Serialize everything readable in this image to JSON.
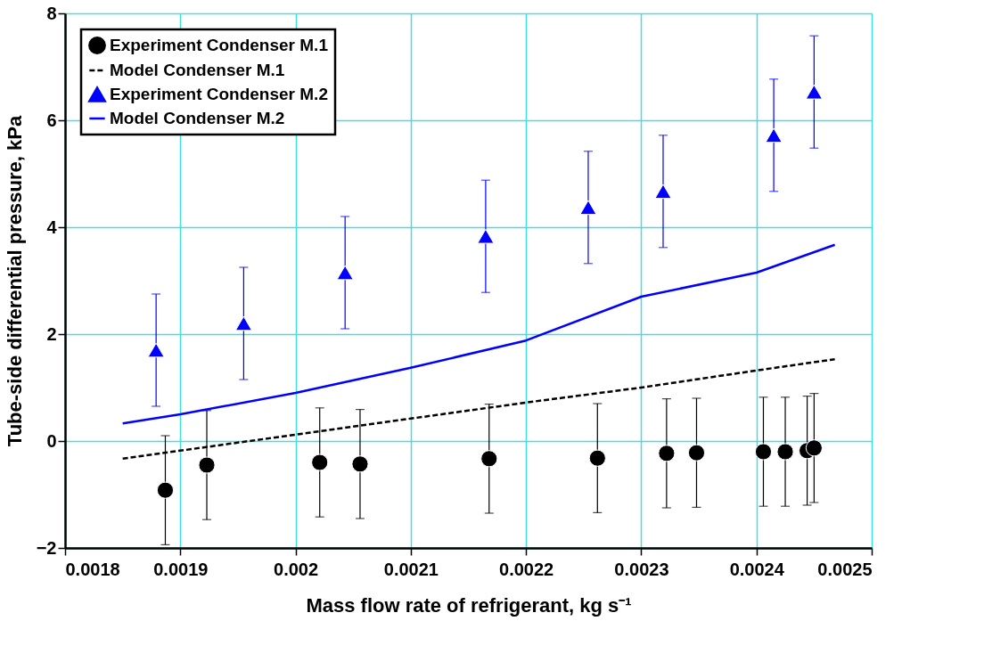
{
  "chart_data": {
    "type": "scatter",
    "xlabel": "Mass flow rate of refrigerant, kg s⁻¹",
    "ylabel": "Tube-side differential pressure, kPa",
    "xlim": [
      0.0018,
      0.0025
    ],
    "xticks": [
      0.0018,
      0.0019,
      0.002,
      0.0021,
      0.0022,
      0.0023,
      0.0024,
      0.0025
    ],
    "ylim": [
      -2,
      8
    ],
    "yticks": [
      -2,
      0,
      2,
      4,
      6,
      8
    ],
    "grid": true,
    "legend": "top left",
    "series": [
      {
        "name": "Experiment Condenser M.1",
        "marker": "circle",
        "color": "#000000",
        "x": [
          0.001887,
          0.001923,
          0.002021,
          0.002056,
          0.002168,
          0.002262,
          0.002322,
          0.002348,
          0.002406,
          0.002425,
          0.002444,
          0.00245
        ],
        "values": [
          -0.92,
          -0.45,
          -0.4,
          -0.43,
          -0.33,
          -0.32,
          -0.23,
          -0.22,
          -0.2,
          -0.2,
          -0.18,
          -0.13
        ],
        "errors": [
          1.02,
          1.02,
          1.02,
          1.02,
          1.02,
          1.02,
          1.02,
          1.02,
          1.02,
          1.02,
          1.02,
          1.02
        ]
      },
      {
        "name": "Model Condenser M.1",
        "type": "line",
        "line_style": "dashed",
        "marker": "none",
        "color": "#000000",
        "x": [
          0.00185,
          0.0019,
          0.002,
          0.0021,
          0.0022,
          0.0023,
          0.0024,
          0.002468
        ],
        "values": [
          -0.33,
          -0.18,
          0.12,
          0.42,
          0.72,
          1.0,
          1.32,
          1.53
        ]
      },
      {
        "name": "Experiment Condenser M.2",
        "marker": "triangle",
        "color": "#0000ff",
        "x": [
          0.001879,
          0.001955,
          0.002043,
          0.002165,
          0.002254,
          0.002319,
          0.002415,
          0.00245
        ],
        "values": [
          1.7,
          2.2,
          3.15,
          3.83,
          4.37,
          4.67,
          5.72,
          6.53
        ],
        "errors": [
          1.05,
          1.05,
          1.05,
          1.05,
          1.05,
          1.05,
          1.05,
          1.05
        ]
      },
      {
        "name": "Model Condenser M.2",
        "type": "line",
        "line_style": "solid",
        "marker": "none",
        "color": "#0000ff",
        "x": [
          0.00185,
          0.0019,
          0.002,
          0.0021,
          0.0022,
          0.0023,
          0.0024,
          0.002468
        ],
        "values": [
          0.33,
          0.5,
          0.9,
          1.37,
          1.88,
          2.7,
          3.15,
          3.67
        ]
      }
    ]
  }
}
